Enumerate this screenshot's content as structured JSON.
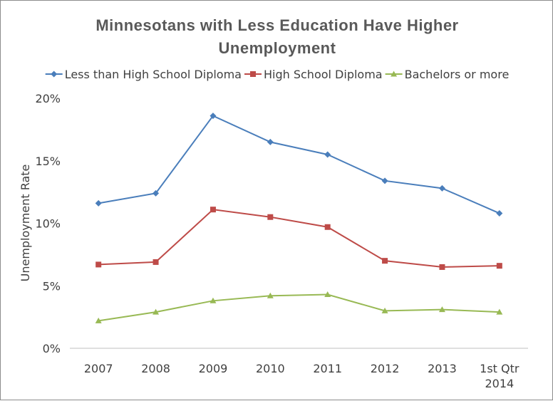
{
  "chart_data": {
    "type": "line",
    "title_lines": [
      "Minnesotans with Less Education Have Higher",
      "Unemployment"
    ],
    "ylabel": "Unemployment Rate",
    "xlabel": "",
    "categories": [
      "2007",
      "2008",
      "2009",
      "2010",
      "2011",
      "2012",
      "2013",
      "1st Qtr 2014"
    ],
    "category_label_lines": [
      [
        "2007"
      ],
      [
        "2008"
      ],
      [
        "2009"
      ],
      [
        "2010"
      ],
      [
        "2011"
      ],
      [
        "2012"
      ],
      [
        "2013"
      ],
      [
        "1st Qtr",
        "2014"
      ]
    ],
    "ylim": [
      0,
      0.2
    ],
    "yticks": [
      0,
      0.05,
      0.1,
      0.15,
      0.2
    ],
    "ytick_labels": [
      "0%",
      "5%",
      "10%",
      "15%",
      "20%"
    ],
    "grid": false,
    "legend_position": "top",
    "series": [
      {
        "name": "Less than High School Diploma",
        "color": "#4a7ebb",
        "marker": "diamond",
        "values": [
          0.116,
          0.124,
          0.186,
          0.165,
          0.155,
          0.134,
          0.128,
          0.108
        ]
      },
      {
        "name": "High School Diploma",
        "color": "#be4b48",
        "marker": "square",
        "values": [
          0.067,
          0.069,
          0.111,
          0.105,
          0.097,
          0.07,
          0.065,
          0.066
        ]
      },
      {
        "name": "Bachelors or more",
        "color": "#98b954",
        "marker": "triangle",
        "values": [
          0.022,
          0.029,
          0.038,
          0.042,
          0.043,
          0.03,
          0.031,
          0.029
        ]
      }
    ]
  }
}
